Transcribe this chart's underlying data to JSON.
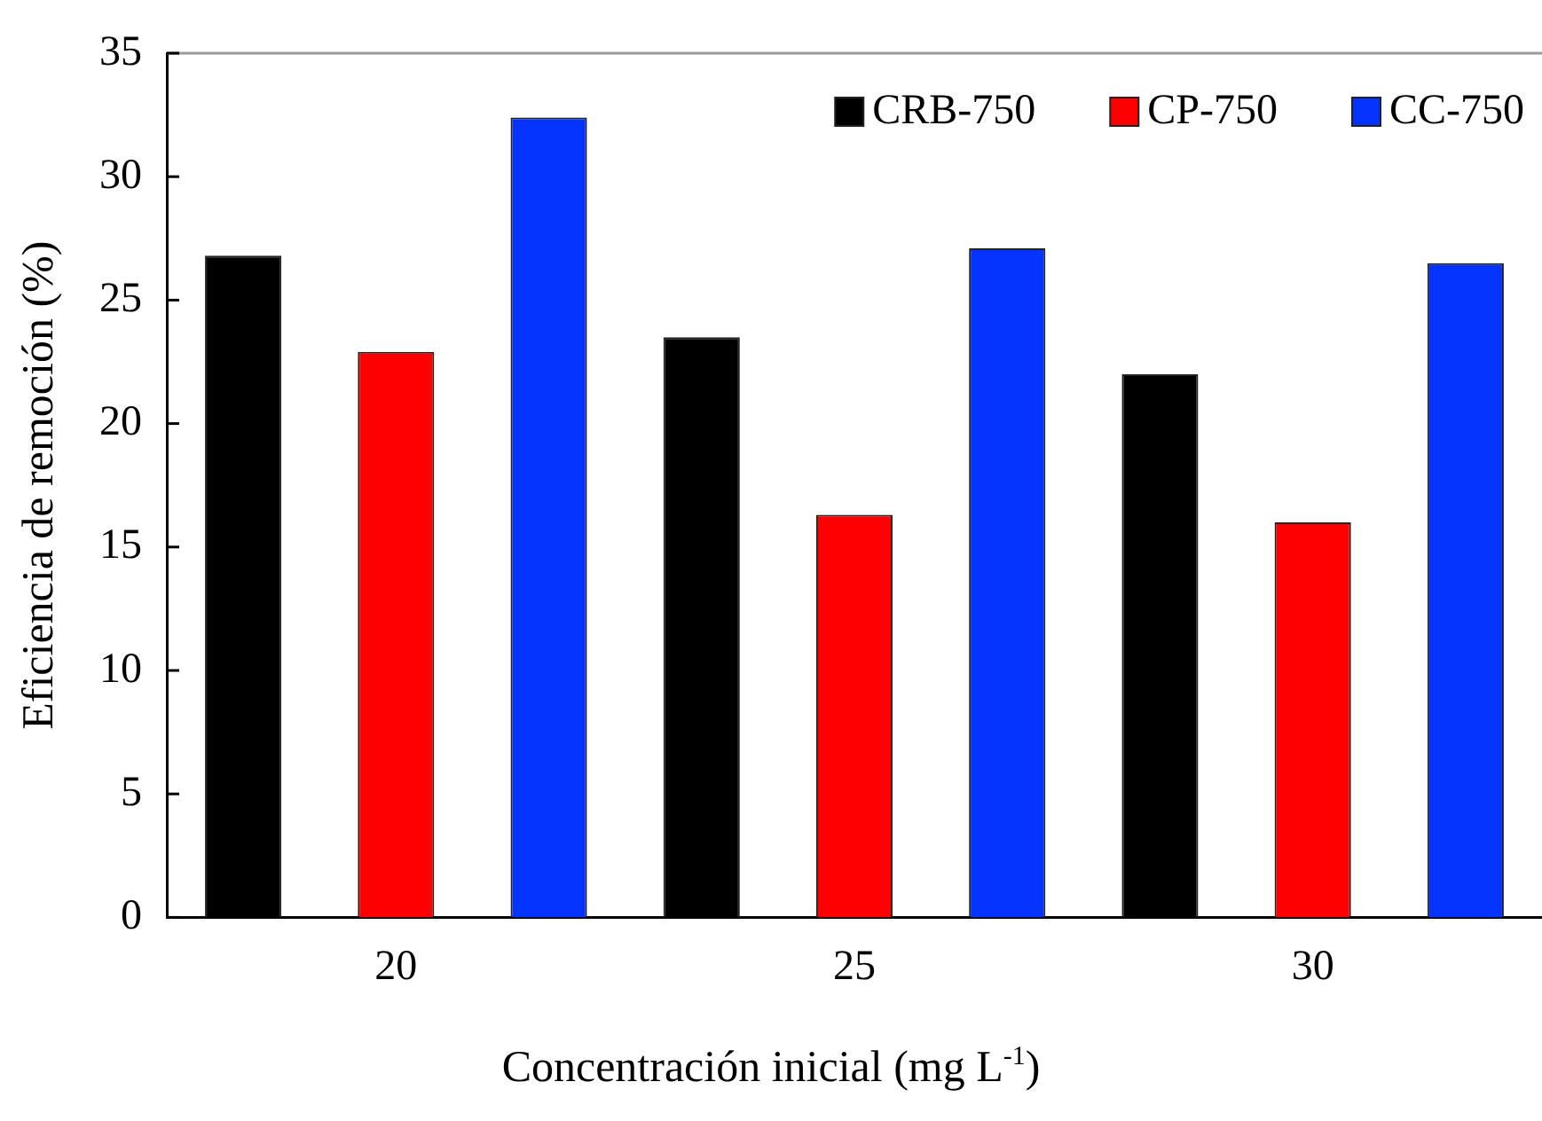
{
  "chart_data": {
    "type": "bar",
    "xlabel": "Concentración inicial (mg L$^{-1}$)",
    "ylabel": "Eficiencia de remoción (%)",
    "categories": [
      "20",
      "25",
      "30"
    ],
    "series": [
      {
        "name": "CRB-750",
        "color": "#000000",
        "values": [
          26.8,
          23.5,
          22.0
        ]
      },
      {
        "name": "CP-750",
        "color": "#ff0000",
        "values": [
          22.9,
          16.3,
          16.0
        ]
      },
      {
        "name": "CC-750",
        "color": "#0433ff",
        "values": [
          32.4,
          27.1,
          26.5
        ]
      }
    ],
    "ylim": [
      0,
      35
    ],
    "yticks": [
      0,
      5,
      10,
      15,
      20,
      25,
      30,
      35
    ],
    "grid": false,
    "legend": "top right"
  }
}
